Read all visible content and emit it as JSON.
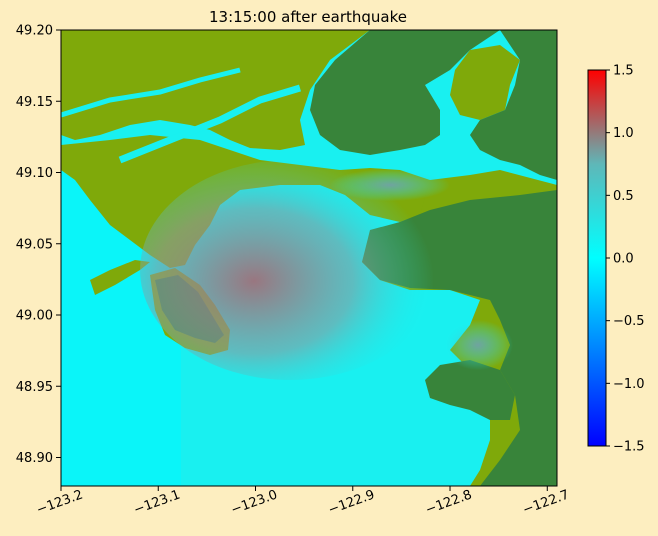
{
  "chart_data": {
    "type": "heatmap",
    "title": "13:15:00 after earthquake",
    "xlabel": "",
    "ylabel": "",
    "xlim": [
      -123.2,
      -122.69
    ],
    "ylim": [
      48.88,
      49.2
    ],
    "xticks": [
      -123.2,
      -123.1,
      -123.0,
      -122.9,
      -122.8,
      -122.7
    ],
    "xtick_labels": [
      "−123.2",
      "−123.1",
      "−123.0",
      "−122.9",
      "−122.8",
      "−122.7"
    ],
    "yticks": [
      48.9,
      48.95,
      49.0,
      49.05,
      49.1,
      49.15,
      49.2
    ],
    "ytick_labels": [
      "48.90",
      "48.95",
      "49.00",
      "49.05",
      "49.10",
      "49.15",
      "49.20"
    ],
    "colorbar": {
      "range": [
        -1.5,
        1.5
      ],
      "ticks": [
        1.5,
        1.0,
        0.5,
        0.0,
        -0.5,
        -1.0,
        -1.5
      ],
      "tick_labels": [
        "1.5",
        "1.0",
        "0.5",
        "0.0",
        "−0.5",
        "−1.0",
        "−1.5"
      ],
      "colors": [
        "#0000ff",
        "#00ffff",
        "#ff0000"
      ]
    },
    "grid": false,
    "colors": {
      "water": "#19f0f0",
      "raised_water": "#9e6f7c",
      "lowland": "#7fa90a",
      "upland": "#38843a",
      "background": "#fdeec0"
    }
  }
}
